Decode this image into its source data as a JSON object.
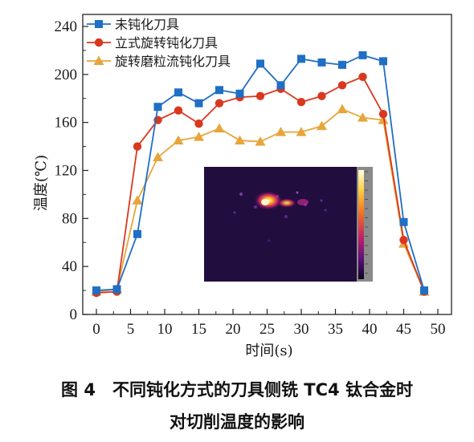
{
  "caption": {
    "line1": "图 4　不同钝化方式的刀具侧铣 TC4 钛合金时",
    "line2": "对切削温度的影响"
  },
  "chart_data": {
    "type": "line",
    "xlabel": "时间(s)",
    "ylabel": "温度(℃)",
    "xlim": [
      -2,
      52
    ],
    "ylim": [
      0,
      250
    ],
    "xticks": [
      0,
      5,
      10,
      15,
      20,
      25,
      30,
      35,
      40,
      45,
      50
    ],
    "yticks": [
      0,
      40,
      80,
      120,
      160,
      200,
      240
    ],
    "grid": false,
    "legend_position": "top-left",
    "inset": "thermal camera image",
    "x": [
      0,
      3,
      6,
      9,
      12,
      15,
      18,
      21,
      24,
      27,
      30,
      33,
      36,
      39,
      42,
      45,
      48
    ],
    "series": [
      {
        "name": "未钝化刀具",
        "color": "#1f6fc5",
        "marker": "square",
        "values": [
          20,
          21,
          67,
          173,
          185,
          176,
          187,
          184,
          209,
          191,
          213,
          210,
          208,
          216,
          211,
          77,
          20
        ]
      },
      {
        "name": "立式旋转钝化刀具",
        "color": "#d9381e",
        "marker": "circle",
        "values": [
          18,
          19,
          140,
          162,
          170,
          159,
          176,
          181,
          182,
          188,
          177,
          182,
          191,
          198,
          167,
          62,
          19
        ]
      },
      {
        "name": "旋转磨粒流钝化刀具",
        "color": "#e8a53a",
        "marker": "triangle",
        "values": [
          19,
          21,
          95,
          131,
          145,
          148,
          155,
          145,
          144,
          152,
          152,
          157,
          171,
          164,
          162,
          59,
          19
        ]
      }
    ]
  }
}
